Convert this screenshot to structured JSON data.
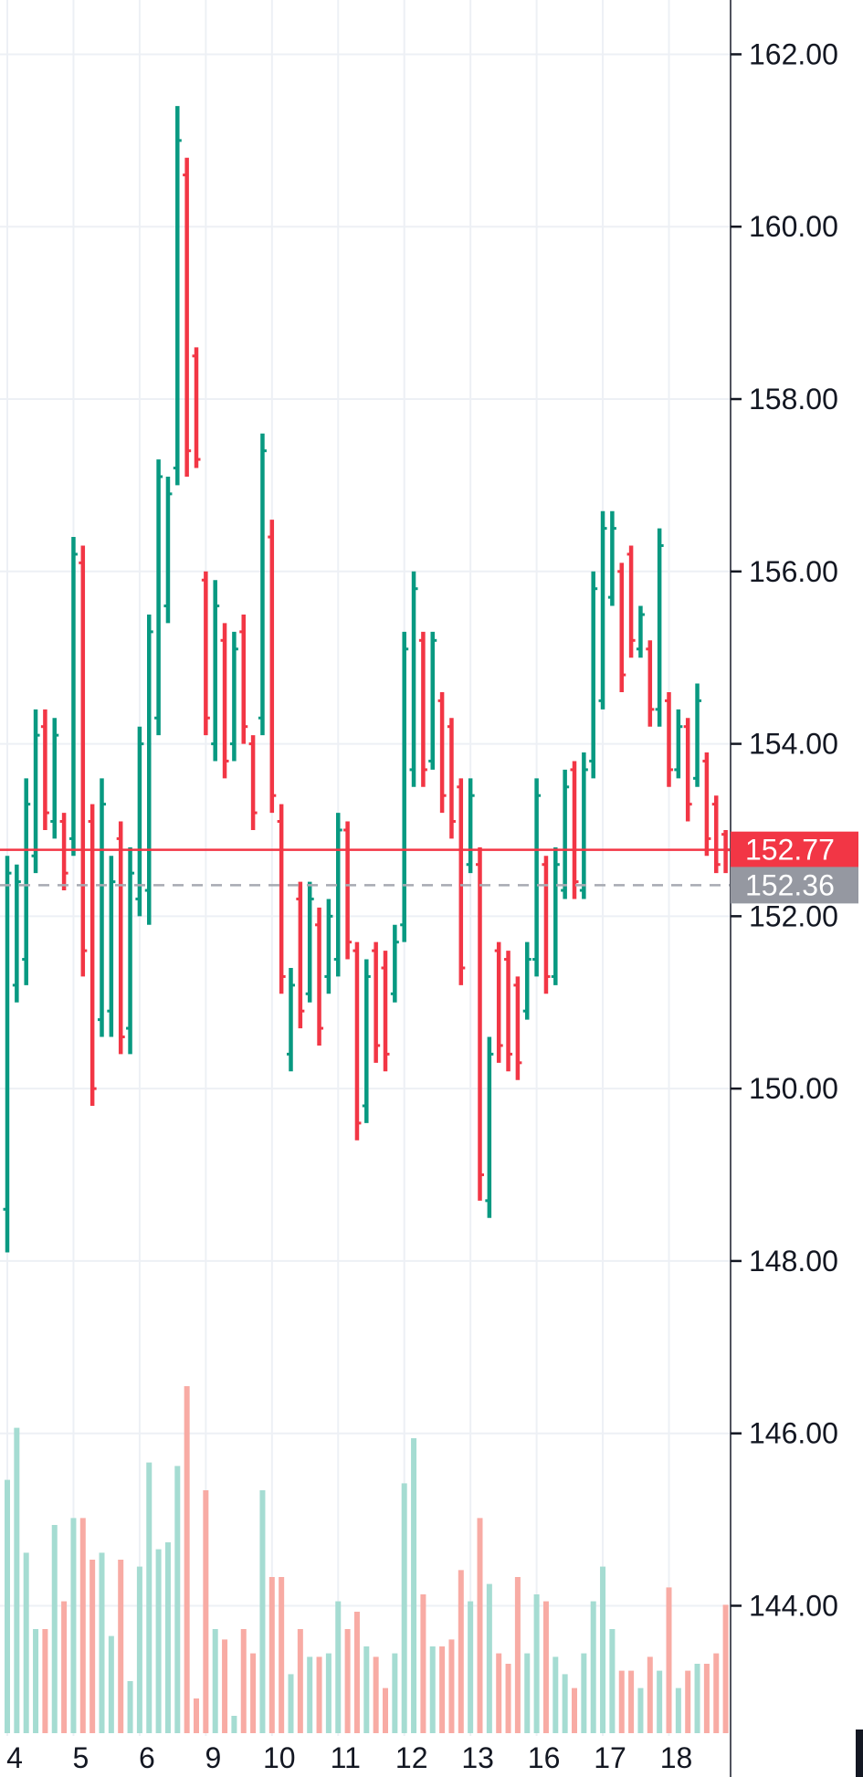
{
  "chart_data": {
    "type": "ohlc",
    "title": "",
    "layout": {
      "grid": true,
      "legend": false,
      "volume_pane": "overlay-bottom"
    },
    "price_axis": {
      "tick_values": [
        162,
        160,
        158,
        156,
        154,
        152,
        150,
        148,
        146,
        144
      ],
      "tick_format_decimals": 2,
      "top_price": 162.63,
      "bottom_price": 142.49
    },
    "time_axis": {
      "day_labels": [
        "4",
        "5",
        "6",
        "9",
        "10",
        "11",
        "12",
        "13",
        "16",
        "17",
        "18"
      ],
      "bars_per_day": 7
    },
    "price_lines": [
      {
        "id": "last-price",
        "value": 152.77,
        "label": "152.77",
        "color": "#f23645",
        "style": "solid"
      },
      {
        "id": "prev-close",
        "value": 152.36,
        "label": "152.36",
        "color": "#9598a1",
        "style": "dashed"
      }
    ],
    "bar_fields": [
      "day",
      "open",
      "high",
      "low",
      "close",
      "volume_rel"
    ],
    "bars": [
      [
        "4",
        148.6,
        152.7,
        148.1,
        152.5,
        73
      ],
      [
        "4",
        151.2,
        152.6,
        151.0,
        152.4,
        88
      ],
      [
        "4",
        151.5,
        153.6,
        151.2,
        153.3,
        52
      ],
      [
        "4",
        152.7,
        154.4,
        152.5,
        154.1,
        30
      ],
      [
        "4",
        154.2,
        154.4,
        153.0,
        153.2,
        30
      ],
      [
        "4",
        153.1,
        154.3,
        152.9,
        154.1,
        60
      ],
      [
        "4",
        153.1,
        153.2,
        152.3,
        152.5,
        38
      ],
      [
        "5",
        152.9,
        156.4,
        152.7,
        156.2,
        62
      ],
      [
        "5",
        156.1,
        156.3,
        151.3,
        151.6,
        62
      ],
      [
        "5",
        153.1,
        153.3,
        149.8,
        150.0,
        50
      ],
      [
        "5",
        150.8,
        153.6,
        150.6,
        153.3,
        52
      ],
      [
        "5",
        150.9,
        152.7,
        150.6,
        152.4,
        28
      ],
      [
        "5",
        152.9,
        153.1,
        150.4,
        150.6,
        50
      ],
      [
        "5",
        150.7,
        152.8,
        150.4,
        152.5,
        15
      ],
      [
        "6",
        152.2,
        154.2,
        152.0,
        154.0,
        48
      ],
      [
        "6",
        152.3,
        155.5,
        151.9,
        155.3,
        78
      ],
      [
        "6",
        154.3,
        157.3,
        154.1,
        157.1,
        53
      ],
      [
        "6",
        155.6,
        157.1,
        155.4,
        156.9,
        55
      ],
      [
        "6",
        157.2,
        161.4,
        157.0,
        161.0,
        77
      ],
      [
        "6",
        160.6,
        160.8,
        157.1,
        157.4,
        100
      ],
      [
        "6",
        158.5,
        158.6,
        157.2,
        157.3,
        10
      ],
      [
        "9",
        155.9,
        156.0,
        154.1,
        154.3,
        70
      ],
      [
        "9",
        154.0,
        155.9,
        153.8,
        155.6,
        30
      ],
      [
        "9",
        155.2,
        155.4,
        153.6,
        153.8,
        27
      ],
      [
        "9",
        154.0,
        155.3,
        153.8,
        155.1,
        5
      ],
      [
        "9",
        155.3,
        155.5,
        154.0,
        154.2,
        30
      ],
      [
        "9",
        154.0,
        154.1,
        153.0,
        153.2,
        23
      ],
      [
        "9",
        154.3,
        157.6,
        154.1,
        157.4,
        70
      ],
      [
        "10",
        156.4,
        156.6,
        153.2,
        153.4,
        45
      ],
      [
        "10",
        153.1,
        153.3,
        151.1,
        151.3,
        45
      ],
      [
        "10",
        150.4,
        151.4,
        150.2,
        151.2,
        17
      ],
      [
        "10",
        152.2,
        152.4,
        150.7,
        150.9,
        30
      ],
      [
        "10",
        151.1,
        152.4,
        151.0,
        152.2,
        22
      ],
      [
        "10",
        151.9,
        152.1,
        150.5,
        150.7,
        22
      ],
      [
        "10",
        151.3,
        152.2,
        151.1,
        152.0,
        23
      ],
      [
        "11",
        151.5,
        153.2,
        151.3,
        153.0,
        38
      ],
      [
        "11",
        153.0,
        153.1,
        151.5,
        151.7,
        30
      ],
      [
        "11",
        151.6,
        151.7,
        149.4,
        149.6,
        35
      ],
      [
        "11",
        149.8,
        151.5,
        149.6,
        151.3,
        25
      ],
      [
        "11",
        151.6,
        151.7,
        150.3,
        150.5,
        22
      ],
      [
        "11",
        151.4,
        151.6,
        150.2,
        150.4,
        13
      ],
      [
        "11",
        151.1,
        151.9,
        151.0,
        151.7,
        23
      ],
      [
        "12",
        151.9,
        155.3,
        151.7,
        155.1,
        72
      ],
      [
        "12",
        153.7,
        156.0,
        153.5,
        155.8,
        85
      ],
      [
        "12",
        155.2,
        155.3,
        153.5,
        153.7,
        40
      ],
      [
        "12",
        153.8,
        155.3,
        153.7,
        155.2,
        25
      ],
      [
        "12",
        154.5,
        154.6,
        153.2,
        153.4,
        25
      ],
      [
        "12",
        154.2,
        154.3,
        152.9,
        153.1,
        27
      ],
      [
        "12",
        153.5,
        153.6,
        151.2,
        151.4,
        47
      ],
      [
        "13",
        152.6,
        153.6,
        152.5,
        153.4,
        38
      ],
      [
        "13",
        152.6,
        152.8,
        148.7,
        149.0,
        62
      ],
      [
        "13",
        148.7,
        150.6,
        148.5,
        150.4,
        43
      ],
      [
        "13",
        151.6,
        151.7,
        150.3,
        150.5,
        23
      ],
      [
        "13",
        151.5,
        151.6,
        150.2,
        150.4,
        20
      ],
      [
        "13",
        151.2,
        151.3,
        150.1,
        150.3,
        45
      ],
      [
        "13",
        150.9,
        151.7,
        150.8,
        151.5,
        23
      ],
      [
        "16",
        151.5,
        153.6,
        151.3,
        153.4,
        40
      ],
      [
        "16",
        152.6,
        152.7,
        151.1,
        151.3,
        38
      ],
      [
        "16",
        151.3,
        152.8,
        151.2,
        152.6,
        22
      ],
      [
        "16",
        152.3,
        153.7,
        152.2,
        153.5,
        17
      ],
      [
        "16",
        153.7,
        153.8,
        152.2,
        152.4,
        13
      ],
      [
        "16",
        152.3,
        153.9,
        152.2,
        153.7,
        23
      ],
      [
        "16",
        153.8,
        156.0,
        153.6,
        155.8,
        38
      ],
      [
        "17",
        154.5,
        156.7,
        154.4,
        156.5,
        48
      ],
      [
        "17",
        155.7,
        156.7,
        155.6,
        156.5,
        30
      ],
      [
        "17",
        156.0,
        156.1,
        154.6,
        154.8,
        18
      ],
      [
        "17",
        156.2,
        156.3,
        155.0,
        155.2,
        18
      ],
      [
        "17",
        155.1,
        155.6,
        155.0,
        155.5,
        13
      ],
      [
        "17",
        155.1,
        155.2,
        154.2,
        154.4,
        22
      ],
      [
        "17",
        154.4,
        156.5,
        154.2,
        156.3,
        18
      ],
      [
        "18",
        154.5,
        154.6,
        153.5,
        153.7,
        42
      ],
      [
        "18",
        153.7,
        154.4,
        153.6,
        154.2,
        13
      ],
      [
        "18",
        154.2,
        154.3,
        153.1,
        153.3,
        18
      ],
      [
        "18",
        153.6,
        154.7,
        153.5,
        154.5,
        20
      ],
      [
        "18",
        153.8,
        153.9,
        152.7,
        152.9,
        20
      ],
      [
        "18",
        153.3,
        153.4,
        152.5,
        152.6,
        23
      ],
      [
        "18",
        152.95,
        153.0,
        152.5,
        152.77,
        37
      ]
    ]
  },
  "colors": {
    "up": "#089981",
    "down": "#f23645",
    "volume_up": "#a5dcd2",
    "volume_down": "#f8aba4",
    "grid": "#edf0f5",
    "axis_border": "#50535e",
    "axis_text": "#131722",
    "badge_text": "#ffffff",
    "prev_close_line": "#a7aab2",
    "background": "#ffffff",
    "corner_mark": "#131722"
  }
}
